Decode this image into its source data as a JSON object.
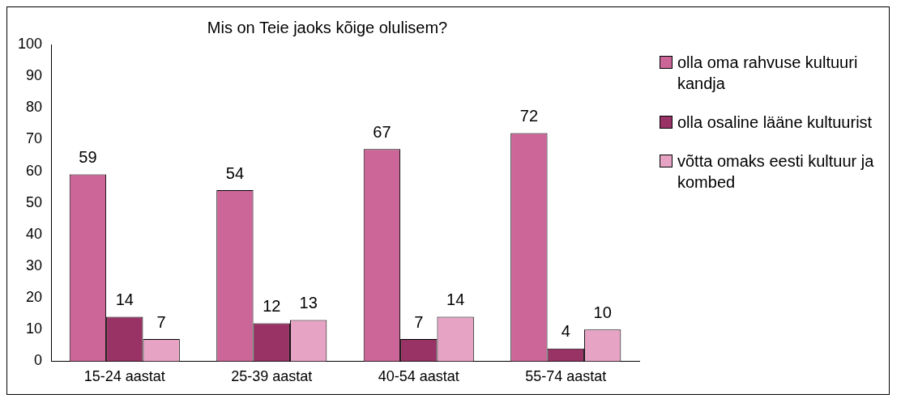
{
  "chart_data": {
    "type": "bar",
    "title": "Mis on Teie jaoks kõige olulisem?",
    "categories": [
      "15-24 aastat",
      "25-39 aastat",
      "40-54 aastat",
      "55-74 aastat"
    ],
    "series": [
      {
        "name": "olla oma rahvuse kultuuri kandja",
        "color": "#cc6699",
        "values": [
          59,
          54,
          67,
          72
        ]
      },
      {
        "name": "olla osaline lääne kultuurist",
        "color": "#993366",
        "values": [
          14,
          12,
          7,
          4
        ]
      },
      {
        "name": "võtta omaks eesti kultuur ja kombed",
        "color": "#e6a3c4",
        "values": [
          7,
          13,
          14,
          10
        ]
      }
    ],
    "ylim": [
      0,
      100
    ],
    "yticks": [
      0,
      10,
      20,
      30,
      40,
      50,
      60,
      70,
      80,
      90,
      100
    ],
    "grid": false,
    "legend": "right",
    "data_labels": true
  }
}
